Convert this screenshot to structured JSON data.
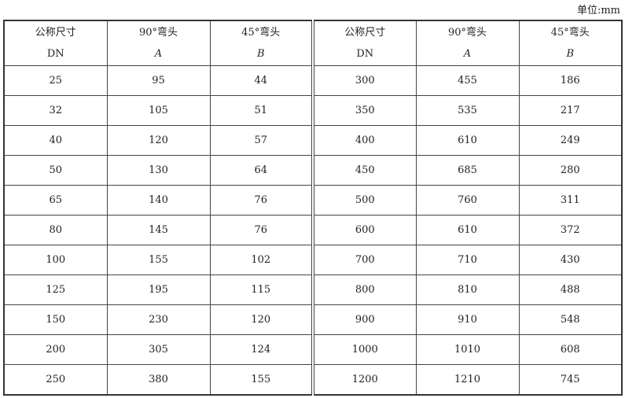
{
  "unit_label": "单位:mm",
  "headers": [
    {
      "line1": "公称尺寸",
      "line2": "DN",
      "italic": false
    },
    {
      "line1": "90°弯头",
      "line2": "A",
      "italic": true
    },
    {
      "line1": "45°弯头",
      "line2": "B",
      "italic": true
    },
    {
      "line1": "公称尺寸",
      "line2": "DN",
      "italic": false
    },
    {
      "line1": "90°弯头",
      "line2": "A",
      "italic": true
    },
    {
      "line1": "45°弯头",
      "line2": "B",
      "italic": true
    }
  ],
  "rows": [
    [
      "25",
      "95",
      "44",
      "300",
      "455",
      "186"
    ],
    [
      "32",
      "105",
      "51",
      "350",
      "535",
      "217"
    ],
    [
      "40",
      "120",
      "57",
      "400",
      "610",
      "249"
    ],
    [
      "50",
      "130",
      "64",
      "450",
      "685",
      "280"
    ],
    [
      "65",
      "140",
      "76",
      "500",
      "760",
      "311"
    ],
    [
      "80",
      "145",
      "76",
      "600",
      "610",
      "372"
    ],
    [
      "100",
      "155",
      "102",
      "700",
      "710",
      "430"
    ],
    [
      "125",
      "195",
      "115",
      "800",
      "810",
      "488"
    ],
    [
      "150",
      "230",
      "120",
      "900",
      "910",
      "548"
    ],
    [
      "200",
      "305",
      "124",
      "1000",
      "1010",
      "608"
    ],
    [
      "250",
      "380",
      "155",
      "1200",
      "1210",
      "745"
    ]
  ]
}
